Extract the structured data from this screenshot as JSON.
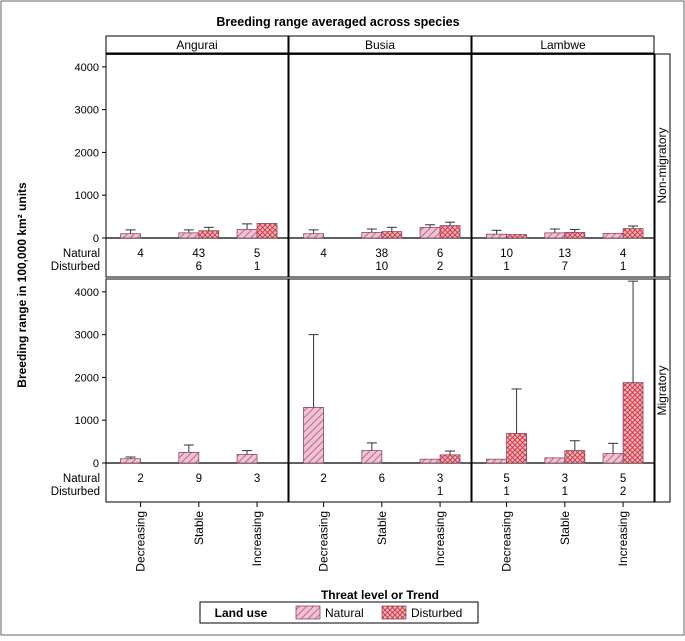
{
  "chart_data": {
    "type": "bar",
    "title": "Breeding range averaged across species",
    "xlabel": "Threat level or Trend",
    "ylabel": "Breeding range in 100,000 km² units",
    "ylim": [
      0,
      4300
    ],
    "yticks": [
      0,
      1000,
      2000,
      3000,
      4000
    ],
    "categories": [
      "Decreasing",
      "Stable",
      "Increasing"
    ],
    "columns": [
      "Angurai",
      "Busia",
      "Lambwe"
    ],
    "rows": [
      "Non-migratory",
      "Migratory"
    ],
    "count_row_labels": [
      "Natural",
      "Disturbed"
    ],
    "legend": {
      "title": "Land use",
      "entries": [
        "Natural",
        "Disturbed"
      ],
      "placement": "bottom"
    },
    "colors": {
      "natural_fill": "#ecc4d5",
      "natural_hatch": "#c04a7a",
      "disturbed_fill": "#f3b3b8",
      "disturbed_hatch": "#cf3040",
      "error_bar": "#333333",
      "frame": "#000000"
    },
    "panels": [
      {
        "column": "Angurai",
        "row": "Non-migratory",
        "natural": {
          "values": [
            100,
            120,
            200
          ],
          "errors": [
            190,
            190,
            330
          ]
        },
        "disturbed": {
          "values": [
            null,
            170,
            340
          ],
          "errors": [
            null,
            250,
            null
          ]
        },
        "counts": {
          "natural": [
            "4",
            "43",
            "5"
          ],
          "disturbed": [
            "",
            "6",
            "1"
          ]
        }
      },
      {
        "column": "Busia",
        "row": "Non-migratory",
        "natural": {
          "values": [
            100,
            130,
            250
          ],
          "errors": [
            190,
            210,
            310
          ]
        },
        "disturbed": {
          "values": [
            null,
            150,
            290
          ],
          "errors": [
            null,
            250,
            370
          ]
        },
        "counts": {
          "natural": [
            "4",
            "38",
            "6"
          ],
          "disturbed": [
            "",
            "10",
            "2"
          ]
        }
      },
      {
        "column": "Lambwe",
        "row": "Non-migratory",
        "natural": {
          "values": [
            90,
            120,
            110
          ],
          "errors": [
            180,
            210,
            null
          ]
        },
        "disturbed": {
          "values": [
            80,
            130,
            220
          ],
          "errors": [
            null,
            200,
            280
          ]
        },
        "counts": {
          "natural": [
            "10",
            "13",
            "4"
          ],
          "disturbed": [
            "1",
            "7",
            "1"
          ]
        }
      },
      {
        "column": "Angurai",
        "row": "Migratory",
        "natural": {
          "values": [
            100,
            250,
            200
          ],
          "errors": [
            140,
            420,
            290
          ]
        },
        "disturbed": {
          "values": [
            null,
            null,
            null
          ],
          "errors": [
            null,
            null,
            null
          ]
        },
        "counts": {
          "natural": [
            "2",
            "9",
            "3"
          ],
          "disturbed": [
            "",
            "",
            ""
          ]
        }
      },
      {
        "column": "Busia",
        "row": "Migratory",
        "natural": {
          "values": [
            1300,
            290,
            90
          ],
          "errors": [
            3000,
            470,
            null
          ]
        },
        "disturbed": {
          "values": [
            null,
            null,
            190
          ],
          "errors": [
            null,
            null,
            280
          ]
        },
        "counts": {
          "natural": [
            "2",
            "6",
            "3"
          ],
          "disturbed": [
            "",
            "",
            "1"
          ]
        }
      },
      {
        "column": "Lambwe",
        "row": "Migratory",
        "natural": {
          "values": [
            90,
            120,
            220
          ],
          "errors": [
            null,
            null,
            460
          ]
        },
        "disturbed": {
          "values": [
            690,
            290,
            1880
          ],
          "errors": [
            1730,
            520,
            4250
          ]
        },
        "counts": {
          "natural": [
            "5",
            "3",
            "5"
          ],
          "disturbed": [
            "1",
            "1",
            "2"
          ]
        }
      }
    ]
  }
}
